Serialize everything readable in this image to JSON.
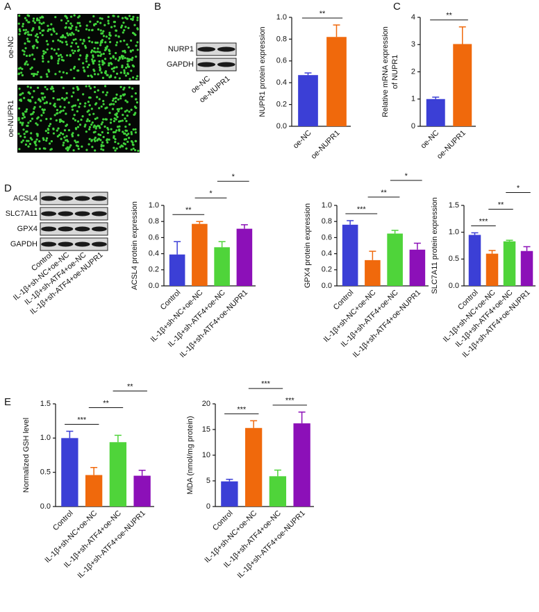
{
  "panel_labels": [
    "A",
    "B",
    "C",
    "D",
    "E"
  ],
  "images": {
    "rows": [
      "oe-NC",
      "oe-NUPR1"
    ]
  },
  "blots": [
    {
      "bands": [
        "NURP1",
        "GAPDH"
      ],
      "lanes": [
        "oe-NC",
        "oe-NUPR1"
      ]
    },
    {
      "bands": [
        "ACSL4",
        "SLC7A11",
        "GPX4",
        "GAPDH"
      ],
      "lanes": [
        "Control",
        "IL-1β+sh-NC+oe-NC",
        "IL-1β+sh-ATF4+oe-NC",
        "IL-1β+sh-ATF4+oe-NUPR1"
      ]
    }
  ],
  "chart_data": [
    {
      "type": "bar",
      "ylabel": "NUPR1 protein expression",
      "categories": [
        "oe-NC",
        "oe-NUPR1"
      ],
      "values": [
        0.47,
        0.82
      ],
      "errors": [
        0.02,
        0.11
      ],
      "colors": [
        "#3b3fd6",
        "#f0690c"
      ],
      "ylim": [
        0,
        1
      ],
      "yticks": [
        {
          "value": 0,
          "label": "0.0"
        },
        0.2,
        0.4,
        0.6,
        0.8,
        {
          "value": 1,
          "label": "1.0"
        }
      ],
      "annotations": [
        {
          "text": "**",
          "from": 0,
          "to": 1
        }
      ]
    },
    {
      "type": "bar",
      "ylabel": [
        "Relative mRNA expression",
        "of NUPR1"
      ],
      "categories": [
        "oe-NC",
        "oe-NUPR1"
      ],
      "values": [
        1.0,
        3.02
      ],
      "errors": [
        0.07,
        0.63
      ],
      "colors": [
        "#3b3fd6",
        "#f0690c"
      ],
      "ylim": [
        0,
        4
      ],
      "yticks": [
        0,
        1,
        2,
        3,
        4
      ],
      "annotations": [
        {
          "text": "**",
          "from": 0,
          "to": 1
        }
      ]
    },
    {
      "type": "bar",
      "ylabel": "ACSL4 protein expression",
      "categories": [
        "Control",
        "IL-1β+sh-NC+oe-NC",
        "IL-1β+sh-ATF4+oe-NC",
        "IL-1β+sh-ATF4+oe-NUPR1"
      ],
      "values": [
        0.39,
        0.77,
        0.48,
        0.71
      ],
      "errors": [
        0.16,
        0.03,
        0.07,
        0.05
      ],
      "colors": [
        "#3b3fd6",
        "#f0690c",
        "#4fd43a",
        "#8c10b8"
      ],
      "ylim": [
        0,
        1
      ],
      "yticks": [
        {
          "value": 0,
          "label": "0.0"
        },
        0.2,
        0.4,
        0.6,
        0.8,
        {
          "value": 1,
          "label": "1.0"
        }
      ],
      "annotations": [
        {
          "text": "**",
          "from": 0,
          "to": 1
        },
        {
          "text": "*",
          "from": 1,
          "to": 2
        },
        {
          "text": "*",
          "from": 2,
          "to": 3
        }
      ]
    },
    {
      "type": "bar",
      "ylabel": "GPX4 protein expression",
      "categories": [
        "Control",
        "IL-1β+sh-NC+oe-NC",
        "IL-1β+sh-ATF4+oe-NC",
        "IL-1β+sh-ATF4+oe-NUPR1"
      ],
      "values": [
        0.76,
        0.32,
        0.65,
        0.45
      ],
      "errors": [
        0.05,
        0.11,
        0.04,
        0.08
      ],
      "colors": [
        "#3b3fd6",
        "#f0690c",
        "#4fd43a",
        "#8c10b8"
      ],
      "ylim": [
        0,
        1
      ],
      "yticks": [
        {
          "value": 0,
          "label": "0.0"
        },
        0.2,
        0.4,
        0.6,
        0.8,
        {
          "value": 1,
          "label": "1.0"
        }
      ],
      "annotations": [
        {
          "text": "***",
          "from": 0,
          "to": 1
        },
        {
          "text": "**",
          "from": 1,
          "to": 2
        },
        {
          "text": "*",
          "from": 2,
          "to": 3
        }
      ]
    },
    {
      "type": "bar",
      "ylabel": "SLC7A11 protein expression",
      "categories": [
        "Control",
        "IL-1β+sh-NC+oe-NC",
        "IL-1β+sh-ATF4+oe-NC",
        "IL-1β+sh-ATF4+oe-NUPR1"
      ],
      "values": [
        0.95,
        0.6,
        0.83,
        0.65
      ],
      "errors": [
        0.04,
        0.06,
        0.02,
        0.08
      ],
      "colors": [
        "#3b3fd6",
        "#f0690c",
        "#4fd43a",
        "#8c10b8"
      ],
      "ylim": [
        0,
        1.5
      ],
      "yticks": [
        {
          "value": 0,
          "label": "0.0"
        },
        0.5,
        {
          "value": 1,
          "label": "1.0"
        },
        1.5
      ],
      "annotations": [
        {
          "text": "***",
          "from": 0,
          "to": 1
        },
        {
          "text": "**",
          "from": 1,
          "to": 2
        },
        {
          "text": "*",
          "from": 2,
          "to": 3
        }
      ]
    },
    {
      "type": "bar",
      "ylabel": "Normalized GSH level",
      "categories": [
        "Control",
        "IL-1β+sh-NC+oe-NC",
        "IL-1β+sh-ATF4+oe-NC",
        "IL-1β+sh-ATF4+oe-NUPR1"
      ],
      "values": [
        1.0,
        0.46,
        0.94,
        0.45
      ],
      "errors": [
        0.1,
        0.11,
        0.1,
        0.08
      ],
      "colors": [
        "#3b3fd6",
        "#f0690c",
        "#4fd43a",
        "#8c10b8"
      ],
      "ylim": [
        0,
        1.5
      ],
      "yticks": [
        {
          "value": 0,
          "label": "0.0"
        },
        0.5,
        {
          "value": 1,
          "label": "1.0"
        },
        1.5
      ],
      "annotations": [
        {
          "text": "***",
          "from": 0,
          "to": 1
        },
        {
          "text": "**",
          "from": 1,
          "to": 2
        },
        {
          "text": "**",
          "from": 2,
          "to": 3
        }
      ]
    },
    {
      "type": "bar",
      "ylabel": "MDA (nmol/mg protein)",
      "categories": [
        "Control",
        "IL-1β+sh-NC+oe-NC",
        "IL-1β+sh-ATF4+oe-NC",
        "IL-1β+sh-ATF4+oe-NUPR1"
      ],
      "values": [
        4.9,
        15.3,
        5.9,
        16.2
      ],
      "errors": [
        0.4,
        1.4,
        1.2,
        2.2
      ],
      "colors": [
        "#3b3fd6",
        "#f0690c",
        "#4fd43a",
        "#8c10b8"
      ],
      "ylim": [
        0,
        20
      ],
      "yticks": [
        0,
        5,
        10,
        15,
        20
      ],
      "annotations": [
        {
          "text": "***",
          "from": 0,
          "to": 1
        },
        {
          "text": "***",
          "from": 2,
          "to": 3
        },
        {
          "text": "***",
          "from": 1,
          "to": 2
        }
      ]
    }
  ]
}
